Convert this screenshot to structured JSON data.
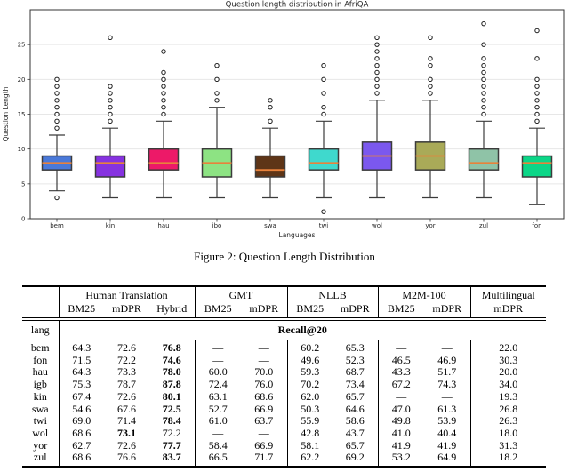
{
  "caption": "Figure 2: Question Length Distribution",
  "chart_data": {
    "type": "boxplot",
    "title": "Question length distribution in AfriQA",
    "xlabel": "Languages",
    "ylabel": "Question Length",
    "ylim": [
      0,
      30
    ],
    "yticks": [
      0,
      5,
      10,
      15,
      20,
      25
    ],
    "grid": "horizontal",
    "median_color": "#e8823b",
    "box_edge_color": "#3b3b3b",
    "outlier_edge_color": "#1a1a1a",
    "series": [
      {
        "label": "bem",
        "color": "#4a79d9",
        "whislo": 4,
        "q1": 7,
        "med": 8,
        "q3": 9,
        "whishi": 12,
        "outliers": [
          3,
          13,
          14,
          15,
          16,
          17,
          18,
          19,
          20
        ]
      },
      {
        "label": "kin",
        "color": "#8632e0",
        "whislo": 3,
        "q1": 6,
        "med": 8,
        "q3": 9,
        "whishi": 13,
        "outliers": [
          14,
          15,
          16,
          17,
          18,
          19,
          26
        ]
      },
      {
        "label": "hau",
        "color": "#ed1968",
        "whislo": 3,
        "q1": 7,
        "med": 8,
        "q3": 10,
        "whishi": 14,
        "outliers": [
          15,
          16,
          17,
          18,
          19,
          20,
          21,
          24
        ]
      },
      {
        "label": "ibo",
        "color": "#8de383",
        "whislo": 3,
        "q1": 6,
        "med": 8,
        "q3": 10,
        "whishi": 16,
        "outliers": [
          17,
          18,
          20,
          22
        ]
      },
      {
        "label": "swa",
        "color": "#5e3517",
        "whislo": 3,
        "q1": 6,
        "med": 7,
        "q3": 9,
        "whishi": 13,
        "outliers": [
          14,
          16,
          17
        ]
      },
      {
        "label": "twi",
        "color": "#3fd9cd",
        "whislo": 3,
        "q1": 7,
        "med": 8,
        "q3": 10,
        "whishi": 14,
        "outliers": [
          1,
          15,
          16,
          18,
          20,
          22
        ]
      },
      {
        "label": "wol",
        "color": "#7b58ee",
        "whislo": 3,
        "q1": 7,
        "med": 9,
        "q3": 11,
        "whishi": 17,
        "outliers": [
          18,
          19,
          20,
          21,
          22,
          23,
          24,
          25,
          26
        ]
      },
      {
        "label": "yor",
        "color": "#a9aa58",
        "whislo": 3,
        "q1": 7,
        "med": 9,
        "q3": 11,
        "whishi": 17,
        "outliers": [
          18,
          19,
          20,
          22,
          23,
          26
        ]
      },
      {
        "label": "zul",
        "color": "#8fc3a7",
        "whislo": 3,
        "q1": 7,
        "med": 8,
        "q3": 10,
        "whishi": 14,
        "outliers": [
          15,
          16,
          17,
          18,
          19,
          20,
          21,
          22,
          23,
          25,
          28
        ]
      },
      {
        "label": "fon",
        "color": "#0bd687",
        "whislo": 2,
        "q1": 6,
        "med": 8,
        "q3": 9,
        "whishi": 13,
        "outliers": [
          14,
          15,
          16,
          17,
          18,
          19,
          20,
          23,
          27
        ]
      }
    ]
  },
  "table": {
    "groups": [
      {
        "label": "",
        "span": 1
      },
      {
        "label": "Human Translation",
        "span": 3
      },
      {
        "label": "GMT",
        "span": 2
      },
      {
        "label": "NLLB",
        "span": 2
      },
      {
        "label": "M2M-100",
        "span": 2
      },
      {
        "label": "Multilingual",
        "span": 1
      }
    ],
    "subheaders": [
      "",
      "BM25",
      "mDPR",
      "Hybrid",
      "BM25",
      "mDPR",
      "BM25",
      "mDPR",
      "BM25",
      "mDPR",
      "mDPR"
    ],
    "lang_header": "lang",
    "metric_header": "Recall@20",
    "rows": [
      {
        "lang": "bem",
        "values": [
          "64.3",
          "72.6",
          "76.8",
          "—",
          "—",
          "60.2",
          "65.3",
          "—",
          "—",
          "22.0"
        ],
        "bold": 2
      },
      {
        "lang": "fon",
        "values": [
          "71.5",
          "72.2",
          "74.6",
          "—",
          "—",
          "49.6",
          "52.3",
          "46.5",
          "46.9",
          "30.3"
        ],
        "bold": 2
      },
      {
        "lang": "hau",
        "values": [
          "64.3",
          "73.3",
          "78.0",
          "60.0",
          "70.0",
          "59.3",
          "68.7",
          "43.3",
          "51.7",
          "20.0"
        ],
        "bold": 2
      },
      {
        "lang": "igb",
        "values": [
          "75.3",
          "78.7",
          "87.8",
          "72.4",
          "76.0",
          "70.2",
          "73.4",
          "67.2",
          "74.3",
          "34.0"
        ],
        "bold": 2
      },
      {
        "lang": "kin",
        "values": [
          "67.4",
          "72.6",
          "80.1",
          "63.1",
          "68.6",
          "62.0",
          "65.7",
          "—",
          "—",
          "19.3"
        ],
        "bold": 2
      },
      {
        "lang": "swa",
        "values": [
          "54.6",
          "67.6",
          "72.5",
          "52.7",
          "66.9",
          "50.3",
          "64.6",
          "47.0",
          "61.3",
          "26.8"
        ],
        "bold": 2
      },
      {
        "lang": "twi",
        "values": [
          "69.0",
          "71.4",
          "78.4",
          "61.0",
          "63.7",
          "55.9",
          "58.6",
          "49.8",
          "53.9",
          "26.3"
        ],
        "bold": 2
      },
      {
        "lang": "wol",
        "values": [
          "68.6",
          "73.1",
          "72.2",
          "—",
          "—",
          "42.8",
          "43.7",
          "41.0",
          "40.4",
          "18.0"
        ],
        "bold": 1
      },
      {
        "lang": "yor",
        "values": [
          "62.7",
          "72.6",
          "77.7",
          "58.4",
          "66.9",
          "58.1",
          "65.7",
          "41.9",
          "41.9",
          "31.3"
        ],
        "bold": 2
      },
      {
        "lang": "zul",
        "values": [
          "68.6",
          "76.6",
          "83.7",
          "66.5",
          "71.7",
          "62.2",
          "69.2",
          "53.2",
          "64.9",
          "18.2"
        ],
        "bold": 2
      }
    ]
  }
}
